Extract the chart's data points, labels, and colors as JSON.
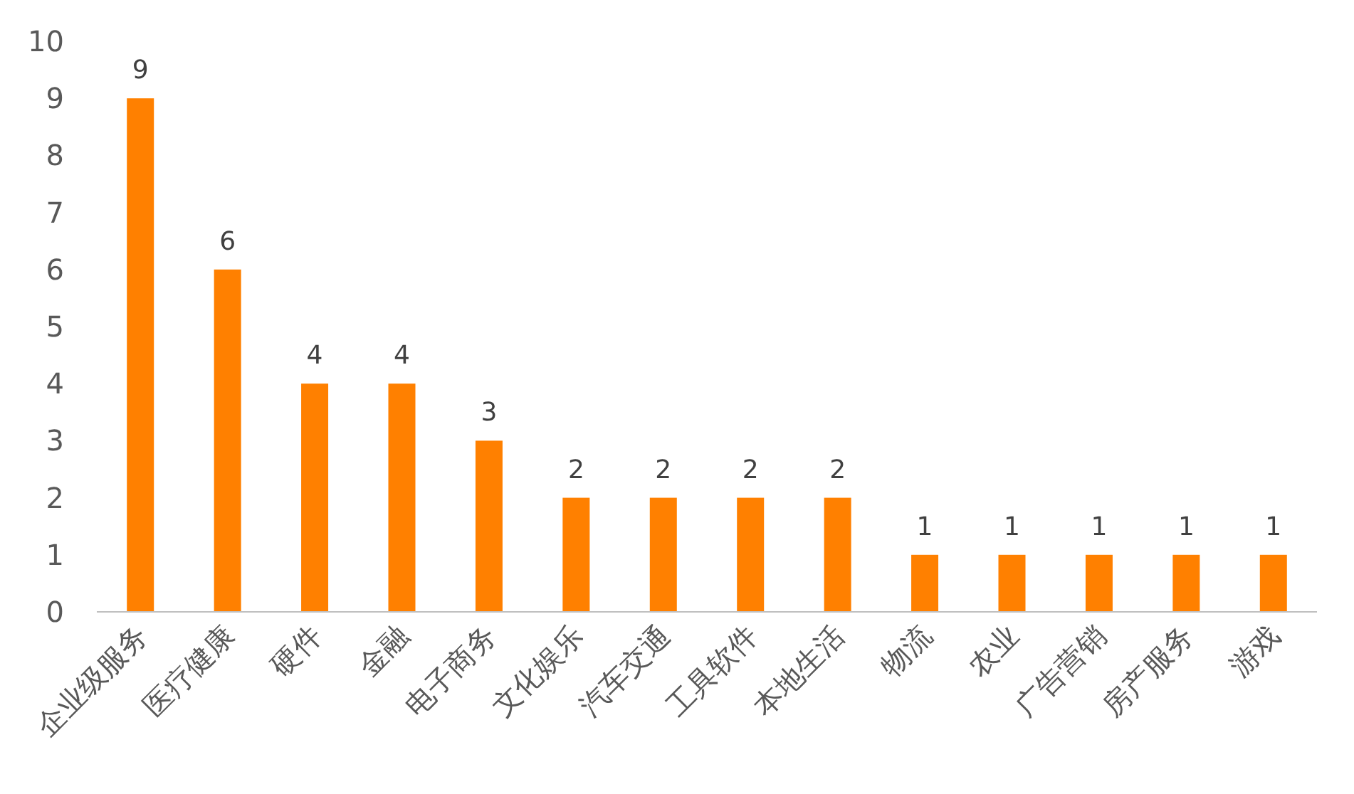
{
  "chart_data": {
    "type": "bar",
    "categories": [
      "企业级服务",
      "医疗健康",
      "硬件",
      "金融",
      "电子商务",
      "文化娱乐",
      "汽车交通",
      "工具软件",
      "本地生活",
      "物流",
      "农业",
      "广告营销",
      "房产服务",
      "游戏"
    ],
    "values": [
      9,
      6,
      4,
      4,
      3,
      2,
      2,
      2,
      2,
      1,
      1,
      1,
      1,
      1
    ],
    "color": "#ff8000",
    "ylim": [
      0,
      10
    ],
    "yticks": [
      0,
      1,
      2,
      3,
      4,
      5,
      6,
      7,
      8,
      9,
      10
    ],
    "data_labels": true,
    "grid": false
  }
}
